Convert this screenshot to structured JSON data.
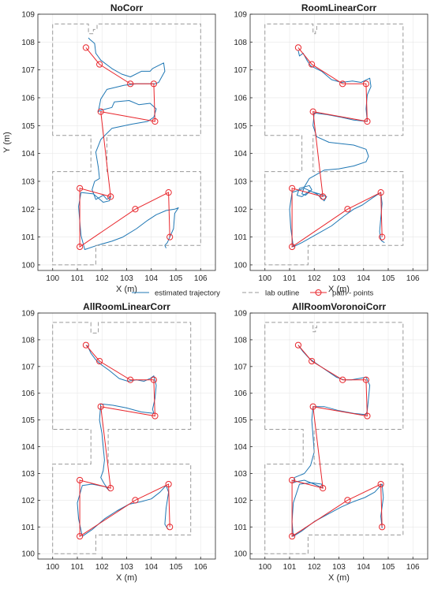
{
  "legend": {
    "estimated": "estimated trajectory",
    "outline": "lab outline",
    "points": "path - points"
  },
  "colors": {
    "trajectory": "#1f77b4",
    "outline": "#9a9a9a",
    "points": "#e8262c",
    "axes": "#262626",
    "grid": "#e6e6e6"
  },
  "chart_data": [
    {
      "type": "line",
      "title": "NoCorr",
      "xlabel": "X (m)",
      "ylabel": "Y (m)",
      "xlim": [
        99.4,
        106.6
      ],
      "ylim": [
        99.8,
        109
      ],
      "xticks": [
        100,
        101,
        102,
        103,
        104,
        105,
        106
      ],
      "yticks": [
        100,
        101,
        102,
        103,
        104,
        105,
        106,
        107,
        108,
        109
      ],
      "grid": true,
      "legend_position": "bottom",
      "series": [
        {
          "name": "estimated trajectory",
          "x": [
            101.45,
            101.5,
            101.7,
            101.75,
            101.95,
            102.4,
            102.8,
            103.15,
            103.6,
            103.95,
            104.05,
            104.5,
            104.55,
            104.3,
            104.15,
            103.4,
            102.9,
            102.2,
            101.95,
            101.85,
            101.95,
            102.4,
            102.5,
            103.1,
            103.5,
            103.95,
            104.2,
            104.1,
            103.85,
            103.2,
            102.4,
            101.95,
            101.75,
            101.85,
            101.9,
            101.7,
            101.6,
            101.75,
            101.95,
            102.05,
            102.2,
            102.35,
            102.3,
            102.05,
            101.65,
            101.15,
            101.05,
            101.1,
            101.15,
            101.3,
            101.8,
            102.4,
            102.85,
            103.4,
            103.85,
            104.2,
            104.6,
            104.95,
            105.1,
            104.95,
            104.9,
            104.75,
            104.65,
            104.55,
            104.6
          ],
          "y": [
            108.15,
            108.1,
            107.95,
            107.6,
            107.35,
            107.05,
            106.85,
            106.75,
            106.95,
            106.95,
            107.05,
            107.25,
            106.95,
            106.55,
            106.5,
            106.5,
            106.45,
            106.3,
            105.95,
            105.5,
            105.55,
            105.65,
            105.85,
            105.9,
            105.75,
            105.8,
            105.6,
            105.3,
            105.15,
            105.05,
            104.9,
            104.5,
            104.05,
            103.5,
            103.1,
            103.0,
            102.7,
            102.35,
            102.45,
            102.5,
            102.35,
            102.45,
            102.3,
            102.25,
            102.55,
            102.6,
            102.1,
            101.55,
            101.05,
            100.55,
            100.7,
            100.85,
            101.0,
            101.3,
            101.6,
            101.8,
            101.95,
            102.0,
            102.05,
            101.85,
            101.3,
            101.0,
            100.8,
            100.7,
            100.6
          ]
        },
        {
          "name": "lab outline",
          "x": [
            100,
            100,
            101.45,
            101.45,
            101.65,
            101.65,
            101.8,
            101.8,
            106,
            106,
            102.2,
            102.2,
            106,
            106,
            105.4,
            105.4,
            101.75,
            101.75,
            100,
            100,
            100,
            101.55,
            101.55,
            100,
            100
          ],
          "y": [
            104.65,
            108.65,
            108.65,
            108.3,
            108.3,
            108.45,
            108.45,
            108.65,
            108.65,
            104.65,
            104.65,
            103.35,
            103.35,
            100.7,
            100.7,
            100.7,
            100.7,
            100,
            100,
            100,
            103.35,
            103.35,
            104.65,
            104.65,
            104.65
          ]
        },
        {
          "name": "path - points",
          "x": [
            101.35,
            101.9,
            103.15,
            104.1,
            104.15,
            101.95,
            102.35,
            101.1,
            101.1,
            103.35,
            104.7,
            104.75
          ],
          "y": [
            107.8,
            107.2,
            106.5,
            106.5,
            105.15,
            105.5,
            102.45,
            102.75,
            100.65,
            102.0,
            102.6,
            101.0
          ]
        }
      ]
    },
    {
      "type": "line",
      "title": "RoomLinearCorr",
      "xlabel": "X (m)",
      "ylabel": "",
      "xlim": [
        99.4,
        106.6
      ],
      "ylim": [
        99.8,
        109
      ],
      "xticks": [
        100,
        101,
        102,
        103,
        104,
        105,
        106
      ],
      "yticks": [
        100,
        101,
        102,
        103,
        104,
        105,
        106,
        107,
        108,
        109
      ],
      "grid": true,
      "legend_position": "bottom",
      "series": [
        {
          "name": "estimated trajectory",
          "x": [
            101.35,
            101.4,
            101.55,
            101.7,
            101.85,
            102.3,
            102.7,
            103.1,
            103.55,
            103.9,
            104.25,
            104.3,
            104.15,
            104.1,
            104.15,
            103.6,
            103.1,
            102.5,
            102.0,
            101.95,
            102.1,
            102.6,
            103.1,
            103.6,
            104.1,
            104.2,
            104.1,
            103.6,
            103.0,
            102.4,
            101.8,
            101.6,
            101.5,
            101.65,
            101.9,
            101.8,
            101.4,
            101.3,
            101.5,
            101.8,
            102.2,
            102.5,
            102.4,
            102.1,
            101.6,
            101.1,
            101.0,
            101.05,
            101.15,
            101.5,
            102.1,
            102.7,
            103.2,
            103.6,
            103.95,
            104.35,
            104.7,
            104.75,
            104.7,
            104.65,
            104.7,
            104.75,
            104.85
          ],
          "y": [
            107.7,
            107.5,
            107.6,
            107.35,
            107.15,
            106.95,
            106.65,
            106.55,
            106.6,
            106.55,
            106.7,
            106.4,
            106.1,
            105.6,
            105.15,
            105.2,
            105.3,
            105.4,
            105.45,
            105.0,
            104.6,
            104.4,
            104.35,
            104.3,
            104.15,
            103.9,
            103.7,
            103.55,
            103.45,
            103.4,
            103.1,
            102.8,
            102.55,
            102.5,
            102.7,
            102.85,
            102.75,
            102.5,
            102.45,
            102.65,
            102.55,
            102.45,
            102.3,
            102.55,
            102.75,
            102.6,
            102.0,
            101.3,
            100.65,
            100.8,
            101.1,
            101.4,
            101.75,
            102.0,
            102.15,
            102.4,
            102.6,
            102.2,
            101.7,
            101.2,
            100.9,
            100.85,
            100.8
          ]
        },
        {
          "name": "lab outline",
          "x": [
            100,
            100,
            101.95,
            101.95,
            102.05,
            102.05,
            102.1,
            102.1,
            105.6,
            105.6,
            101.95,
            101.95,
            105.6,
            105.6,
            101.75,
            101.75,
            100,
            100,
            101.5,
            101.5,
            100,
            100
          ],
          "y": [
            104.65,
            108.65,
            108.65,
            108.3,
            108.3,
            108.45,
            108.45,
            108.65,
            108.65,
            104.65,
            104.65,
            103.35,
            103.35,
            100.7,
            100.7,
            100,
            100,
            103.35,
            103.35,
            104.65,
            104.65,
            104.65
          ]
        },
        {
          "name": "path - points",
          "x": [
            101.35,
            101.9,
            103.15,
            104.1,
            104.15,
            101.95,
            102.35,
            101.1,
            101.1,
            103.35,
            104.7,
            104.75
          ],
          "y": [
            107.8,
            107.2,
            106.5,
            106.5,
            105.15,
            105.5,
            102.45,
            102.75,
            100.65,
            102.0,
            102.6,
            101.0
          ]
        }
      ]
    },
    {
      "type": "line",
      "title": "AllRoomLinearCorr",
      "xlabel": "X (m)",
      "ylabel": "",
      "xlim": [
        99.4,
        106.6
      ],
      "ylim": [
        99.8,
        109
      ],
      "xticks": [
        100,
        101,
        102,
        103,
        104,
        105,
        106
      ],
      "yticks": [
        100,
        101,
        102,
        103,
        104,
        105,
        106,
        107,
        108,
        109
      ],
      "grid": true,
      "legend_position": "bottom",
      "series": [
        {
          "name": "estimated trajectory",
          "x": [
            101.4,
            101.55,
            101.75,
            102.0,
            102.3,
            102.7,
            103.05,
            103.4,
            103.7,
            103.95,
            104.1,
            104.2,
            104.15,
            104.05,
            104.1,
            103.6,
            103.0,
            102.45,
            101.95,
            101.9,
            102.0,
            102.05,
            102.1,
            102.05,
            101.95,
            102.1,
            102.3,
            102.15,
            101.6,
            101.2,
            101.0,
            101.05,
            101.2,
            101.6,
            102.1,
            102.6,
            103.1,
            103.6,
            104.0,
            104.35,
            104.6,
            104.7,
            104.6,
            104.55,
            104.65,
            104.7
          ],
          "y": [
            107.8,
            107.5,
            107.25,
            107.05,
            106.85,
            106.55,
            106.45,
            106.5,
            106.45,
            106.55,
            106.65,
            106.3,
            105.8,
            105.4,
            105.25,
            105.3,
            105.45,
            105.55,
            105.6,
            105.0,
            104.5,
            104.0,
            103.5,
            103.1,
            102.85,
            102.6,
            102.35,
            102.5,
            102.6,
            102.55,
            101.9,
            101.3,
            100.65,
            100.9,
            101.3,
            101.6,
            101.85,
            101.95,
            102.05,
            102.3,
            102.55,
            102.3,
            101.7,
            101.1,
            100.95,
            100.9
          ]
        },
        {
          "name": "lab outline",
          "x": [
            100,
            100,
            101.55,
            101.55,
            101.85,
            101.85,
            105.6,
            105.6,
            102.25,
            102.25,
            105.6,
            105.6,
            101.75,
            101.75,
            100,
            100,
            101.55,
            101.55,
            100,
            100
          ],
          "y": [
            104.65,
            108.65,
            108.65,
            108.25,
            108.25,
            108.65,
            108.65,
            104.65,
            104.65,
            103.35,
            103.35,
            100.7,
            100.7,
            100,
            100,
            103.35,
            103.35,
            104.65,
            104.65,
            104.65
          ]
        },
        {
          "name": "path - points",
          "x": [
            101.35,
            101.9,
            103.15,
            104.1,
            104.15,
            101.95,
            102.35,
            101.1,
            101.1,
            103.35,
            104.7,
            104.75
          ],
          "y": [
            107.8,
            107.2,
            106.5,
            106.5,
            105.15,
            105.5,
            102.45,
            102.75,
            100.65,
            102.0,
            102.6,
            101.0
          ]
        }
      ]
    },
    {
      "type": "line",
      "title": "AllRoomVoronoiCorr",
      "xlabel": "X (m)",
      "ylabel": "",
      "xlim": [
        99.4,
        106.6
      ],
      "ylim": [
        99.8,
        109
      ],
      "xticks": [
        100,
        101,
        102,
        103,
        104,
        105,
        106
      ],
      "yticks": [
        100,
        101,
        102,
        103,
        104,
        105,
        106,
        107,
        108,
        109
      ],
      "grid": true,
      "legend_position": "bottom",
      "series": [
        {
          "name": "estimated trajectory",
          "x": [
            101.35,
            101.55,
            101.8,
            102.1,
            102.5,
            102.9,
            103.2,
            103.5,
            103.8,
            104.1,
            104.25,
            104.2,
            104.15,
            104.1,
            103.6,
            103.0,
            102.4,
            101.95,
            101.9,
            101.95,
            102.0,
            101.85,
            101.6,
            101.2,
            101.15,
            101.3,
            101.6,
            102.0,
            102.35,
            102.3,
            101.9,
            101.4,
            101.15,
            101.1,
            101.15,
            101.5,
            102.0,
            102.6,
            103.1,
            103.6,
            104.05,
            104.45,
            104.75,
            104.8,
            104.7,
            104.75
          ],
          "y": [
            107.8,
            107.55,
            107.3,
            107.1,
            106.85,
            106.6,
            106.5,
            106.5,
            106.55,
            106.6,
            106.3,
            105.8,
            105.35,
            105.2,
            105.25,
            105.35,
            105.5,
            105.5,
            105.0,
            104.4,
            103.8,
            103.3,
            103.0,
            102.85,
            102.65,
            102.7,
            102.75,
            102.6,
            102.45,
            102.6,
            102.65,
            102.6,
            101.9,
            101.2,
            100.65,
            100.85,
            101.2,
            101.5,
            101.75,
            101.95,
            102.1,
            102.3,
            102.6,
            102.1,
            101.4,
            100.95
          ]
        },
        {
          "name": "lab outline",
          "x": [
            100,
            100,
            101.95,
            101.95,
            102.05,
            102.05,
            102.1,
            102.1,
            105.6,
            105.6,
            102.0,
            102.0,
            105.6,
            105.6,
            101.75,
            101.75,
            100,
            100,
            101.55,
            101.55,
            100,
            100
          ],
          "y": [
            104.65,
            108.65,
            108.65,
            108.3,
            108.3,
            108.45,
            108.45,
            108.65,
            108.65,
            104.65,
            104.65,
            103.35,
            103.35,
            100.7,
            100.7,
            100,
            100,
            103.35,
            103.35,
            104.65,
            104.65,
            104.65
          ]
        },
        {
          "name": "path - points",
          "x": [
            101.35,
            101.9,
            103.15,
            104.1,
            104.15,
            101.95,
            102.35,
            101.1,
            101.1,
            103.35,
            104.7,
            104.75
          ],
          "y": [
            107.8,
            107.2,
            106.5,
            106.5,
            105.15,
            105.5,
            102.45,
            102.75,
            100.65,
            102.0,
            102.6,
            101.0
          ]
        }
      ]
    }
  ]
}
